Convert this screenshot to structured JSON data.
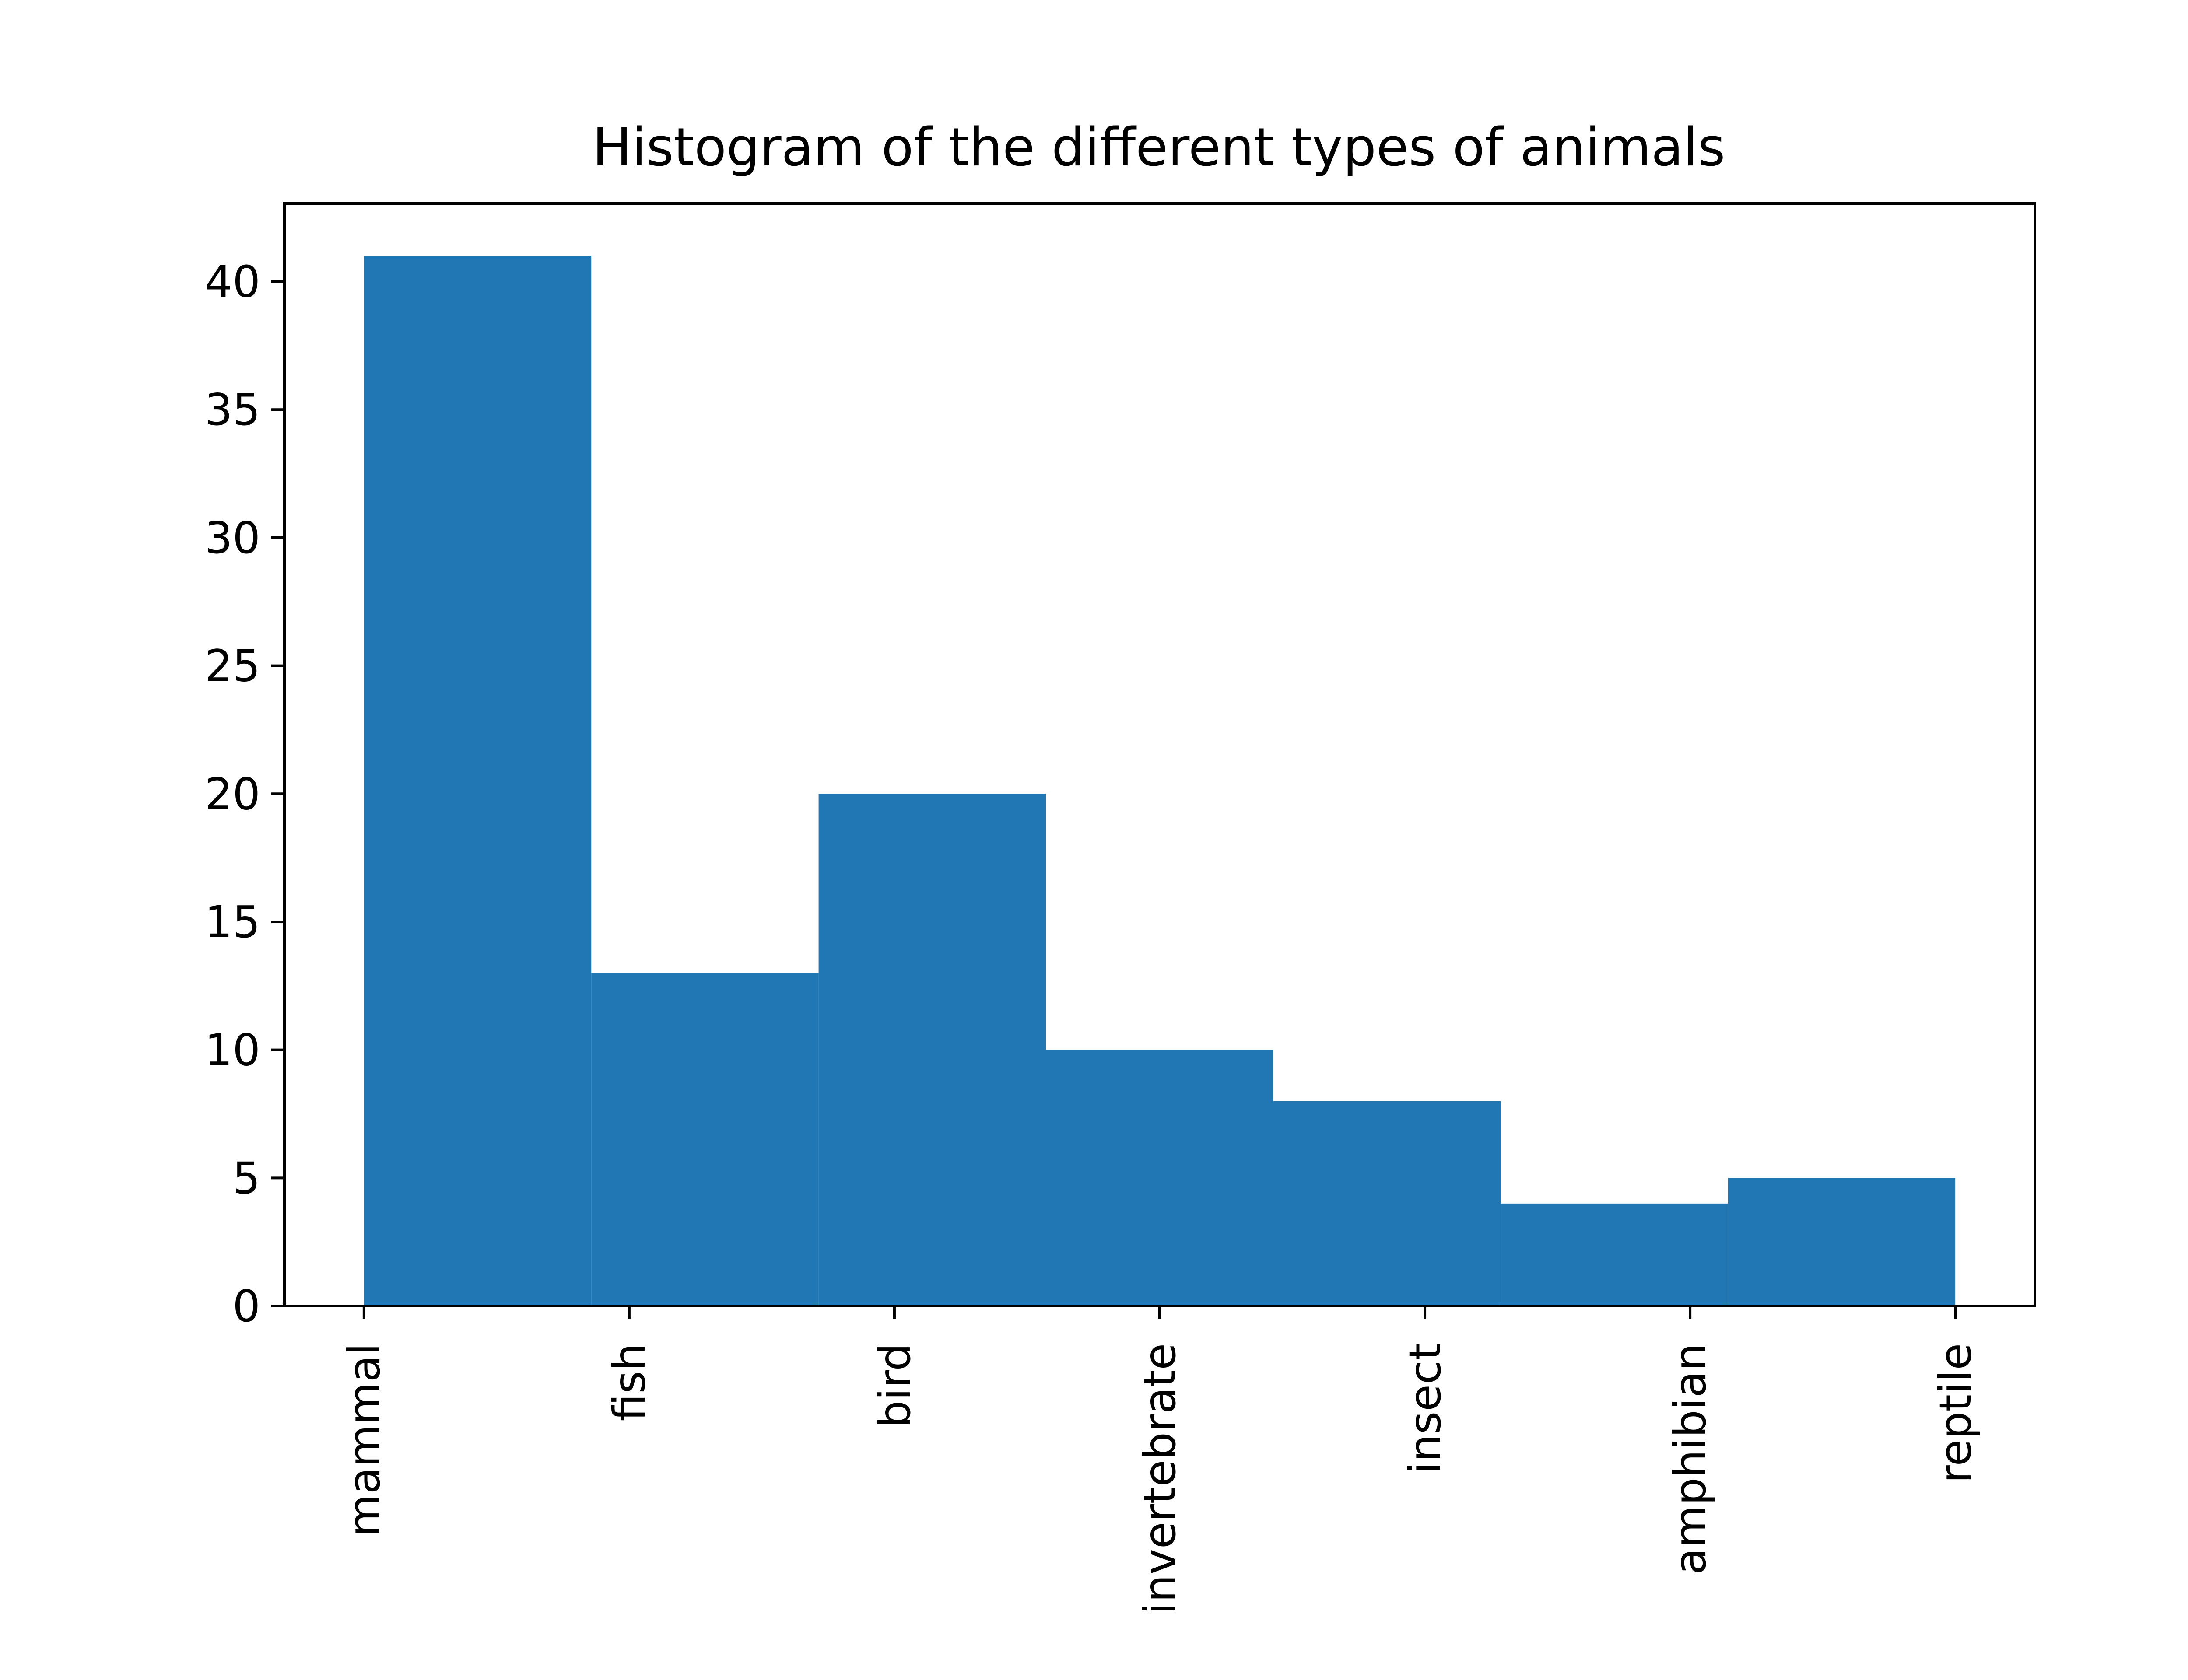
{
  "chart_data": {
    "type": "bar",
    "title": "Histogram of the different types of animals",
    "xlabel": "",
    "ylabel": "",
    "x_ticks": [
      "mammal",
      "fish",
      "bird",
      "invertebrate",
      "insect",
      "amphibian",
      "reptile"
    ],
    "bins": [
      {
        "start": 0,
        "end": 0.857,
        "value": 41
      },
      {
        "start": 0.857,
        "end": 1.714,
        "value": 13
      },
      {
        "start": 1.714,
        "end": 2.571,
        "value": 20
      },
      {
        "start": 2.571,
        "end": 3.429,
        "value": 10
      },
      {
        "start": 3.429,
        "end": 4.286,
        "value": 8
      },
      {
        "start": 4.286,
        "end": 5.143,
        "value": 4
      },
      {
        "start": 5.143,
        "end": 6,
        "value": 5
      }
    ],
    "y_ticks": [
      0,
      5,
      10,
      15,
      20,
      25,
      30,
      35,
      40
    ],
    "xlim": [
      -0.3,
      6.3
    ],
    "ylim": [
      0,
      43.05
    ],
    "grid": false,
    "bar_color": "#2077b4"
  }
}
